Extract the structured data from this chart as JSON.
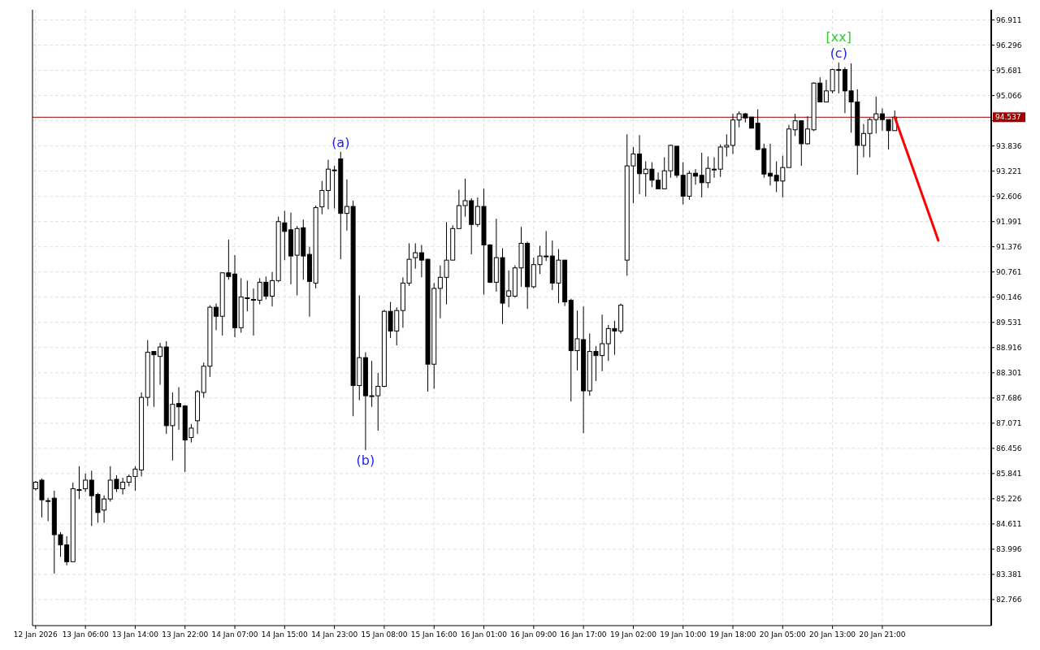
{
  "chart_data": {
    "type": "candlestick",
    "categories": [
      "12 Jan 2026",
      null,
      null,
      null,
      null,
      null,
      null,
      null,
      "13 Jan 06:00",
      null,
      null,
      null,
      null,
      null,
      null,
      null,
      "13 Jan 14:00",
      null,
      null,
      null,
      null,
      null,
      null,
      null,
      "13 Jan 22:00",
      null,
      null,
      null,
      null,
      null,
      null,
      null,
      "14 Jan 07:00",
      null,
      null,
      null,
      null,
      null,
      null,
      null,
      "14 Jan 15:00",
      null,
      null,
      null,
      null,
      null,
      null,
      null,
      "14 Jan 23:00",
      null,
      null,
      null,
      null,
      null,
      null,
      null,
      "15 Jan 08:00",
      null,
      null,
      null,
      null,
      null,
      null,
      null,
      "15 Jan 16:00",
      null,
      null,
      null,
      null,
      null,
      null,
      null,
      "16 Jan 01:00",
      null,
      null,
      null,
      null,
      null,
      null,
      null,
      "16 Jan 09:00",
      null,
      null,
      null,
      null,
      null,
      null,
      null,
      "16 Jan 17:00",
      null,
      null,
      null,
      null,
      null,
      null,
      null,
      "19 Jan 02:00",
      null,
      null,
      null,
      null,
      null,
      null,
      null,
      "19 Jan 10:00",
      null,
      null,
      null,
      null,
      null,
      null,
      null,
      "19 Jan 18:00",
      null,
      null,
      null,
      null,
      null,
      null,
      null,
      "20 Jan 05:00",
      null,
      null,
      null,
      null,
      null,
      null,
      null,
      "20 Jan 13:00",
      null,
      null,
      null,
      null,
      null,
      null,
      null,
      "20 Jan 21:00",
      null,
      null,
      null,
      null,
      null,
      null,
      null,
      null,
      null,
      null,
      null,
      null,
      null,
      null,
      null,
      null,
      null
    ],
    "ohlc": [
      [
        85.47,
        85.66,
        85.43,
        85.63
      ],
      [
        85.68,
        85.72,
        84.77,
        85.2
      ],
      [
        85.18,
        85.25,
        84.68,
        85.18
      ],
      [
        85.24,
        85.42,
        83.4,
        84.35
      ],
      [
        84.35,
        84.41,
        83.81,
        84.1
      ],
      [
        84.1,
        84.31,
        83.6,
        83.69
      ],
      [
        83.69,
        85.62,
        83.69,
        85.47
      ],
      [
        85.45,
        86.02,
        85.22,
        85.45
      ],
      [
        85.47,
        85.84,
        85.39,
        85.68
      ],
      [
        85.68,
        85.91,
        84.56,
        85.3
      ],
      [
        85.33,
        85.37,
        84.64,
        84.89
      ],
      [
        84.95,
        85.31,
        84.64,
        85.22
      ],
      [
        85.22,
        86.02,
        85.16,
        85.68
      ],
      [
        85.7,
        85.8,
        85.39,
        85.47
      ],
      [
        85.47,
        85.74,
        85.33,
        85.63
      ],
      [
        85.63,
        85.82,
        85.53,
        85.77
      ],
      [
        85.77,
        86.02,
        85.42,
        85.95
      ],
      [
        85.93,
        87.82,
        85.77,
        87.7
      ],
      [
        87.7,
        89.1,
        87.49,
        88.8
      ],
      [
        88.82,
        88.82,
        87.47,
        88.74
      ],
      [
        88.7,
        89.03,
        88.01,
        88.93
      ],
      [
        88.93,
        89.07,
        86.81,
        87.01
      ],
      [
        87.01,
        87.82,
        86.16,
        87.53
      ],
      [
        87.55,
        87.95,
        86.91,
        87.47
      ],
      [
        87.49,
        87.51,
        85.88,
        86.66
      ],
      [
        86.72,
        87.05,
        86.6,
        86.95
      ],
      [
        87.13,
        87.88,
        86.81,
        87.84
      ],
      [
        87.82,
        88.55,
        87.69,
        88.46
      ],
      [
        88.46,
        89.95,
        88.2,
        89.9
      ],
      [
        89.9,
        89.99,
        89.34,
        89.68
      ],
      [
        89.68,
        90.74,
        89.21,
        90.74
      ],
      [
        90.74,
        91.55,
        90.57,
        90.65
      ],
      [
        90.71,
        91.17,
        89.17,
        89.4
      ],
      [
        89.4,
        90.61,
        89.28,
        90.15
      ],
      [
        90.13,
        90.55,
        89.8,
        90.13
      ],
      [
        90.09,
        90.36,
        89.21,
        90.09
      ],
      [
        90.07,
        90.61,
        89.97,
        90.51
      ],
      [
        90.51,
        90.65,
        90.09,
        90.17
      ],
      [
        90.17,
        90.76,
        89.92,
        90.55
      ],
      [
        90.55,
        92.11,
        90.51,
        91.99
      ],
      [
        91.96,
        92.25,
        91.05,
        91.75
      ],
      [
        91.79,
        92.21,
        90.46,
        91.15
      ],
      [
        91.17,
        91.88,
        90.19,
        91.82
      ],
      [
        91.84,
        92.04,
        90.57,
        91.15
      ],
      [
        91.19,
        91.38,
        89.67,
        90.53
      ],
      [
        90.49,
        92.38,
        90.36,
        92.33
      ],
      [
        92.35,
        92.98,
        92.17,
        92.75
      ],
      [
        92.75,
        93.5,
        92.29,
        93.27
      ],
      [
        93.25,
        93.35,
        92.31,
        93.25
      ],
      [
        93.52,
        93.69,
        91.07,
        92.19
      ],
      [
        92.19,
        93.02,
        91.77,
        92.36
      ],
      [
        92.36,
        92.5,
        87.24,
        87.99
      ],
      [
        87.99,
        90.19,
        87.63,
        88.67
      ],
      [
        88.67,
        88.8,
        86.41,
        87.74
      ],
      [
        87.74,
        88.59,
        87.47,
        87.74
      ],
      [
        87.74,
        88.3,
        86.89,
        87.97
      ],
      [
        87.97,
        89.84,
        87.95,
        89.8
      ],
      [
        89.8,
        90.03,
        89.15,
        89.32
      ],
      [
        89.32,
        89.9,
        88.97,
        89.82
      ],
      [
        89.82,
        90.63,
        89.4,
        90.49
      ],
      [
        90.49,
        91.46,
        90.42,
        91.07
      ],
      [
        91.11,
        91.46,
        90.84,
        91.23
      ],
      [
        91.23,
        91.42,
        90.63,
        91.05
      ],
      [
        91.07,
        91.09,
        87.84,
        88.51
      ],
      [
        88.51,
        90.49,
        87.91,
        90.36
      ],
      [
        90.36,
        90.92,
        89.63,
        90.63
      ],
      [
        90.63,
        91.98,
        89.97,
        91.05
      ],
      [
        91.05,
        91.9,
        91.05,
        91.82
      ],
      [
        91.82,
        92.77,
        91.82,
        92.38
      ],
      [
        92.38,
        93.04,
        92.11,
        92.5
      ],
      [
        92.5,
        92.56,
        91.19,
        91.92
      ],
      [
        91.92,
        92.58,
        91.86,
        92.36
      ],
      [
        92.36,
        92.79,
        90.21,
        91.42
      ],
      [
        91.42,
        91.44,
        90.49,
        90.51
      ],
      [
        90.51,
        92.06,
        90.28,
        91.11
      ],
      [
        91.11,
        91.34,
        89.49,
        90.0
      ],
      [
        90.17,
        90.8,
        89.9,
        90.3
      ],
      [
        90.17,
        90.92,
        90.13,
        90.86
      ],
      [
        90.86,
        91.86,
        90.4,
        91.46
      ],
      [
        91.46,
        91.5,
        89.86,
        90.4
      ],
      [
        90.4,
        91.11,
        90.36,
        90.94
      ],
      [
        90.94,
        91.4,
        90.71,
        91.15
      ],
      [
        91.15,
        91.76,
        91.03,
        91.15
      ],
      [
        91.15,
        91.53,
        90.32,
        90.49
      ],
      [
        90.49,
        91.32,
        90.0,
        91.05
      ],
      [
        91.05,
        91.05,
        89.93,
        90.03
      ],
      [
        90.07,
        90.11,
        87.6,
        88.84
      ],
      [
        88.84,
        89.82,
        88.36,
        89.13
      ],
      [
        89.11,
        89.92,
        86.83,
        87.86
      ],
      [
        87.86,
        89.26,
        87.74,
        88.82
      ],
      [
        88.82,
        88.95,
        88.1,
        88.72
      ],
      [
        88.72,
        89.72,
        88.34,
        89.01
      ],
      [
        89.01,
        89.47,
        88.59,
        89.38
      ],
      [
        89.38,
        89.57,
        88.74,
        89.32
      ],
      [
        89.32,
        89.99,
        89.26,
        89.95
      ],
      [
        91.05,
        94.12,
        90.67,
        93.35
      ],
      [
        93.35,
        93.81,
        92.44,
        93.64
      ],
      [
        93.64,
        94.1,
        92.66,
        93.16
      ],
      [
        93.16,
        93.46,
        92.6,
        93.27
      ],
      [
        93.27,
        93.44,
        92.83,
        93.0
      ],
      [
        93.0,
        93.19,
        92.79,
        92.79
      ],
      [
        92.79,
        93.56,
        92.79,
        93.23
      ],
      [
        93.23,
        93.87,
        93.06,
        93.85
      ],
      [
        93.83,
        93.83,
        93.06,
        93.12
      ],
      [
        93.12,
        93.44,
        92.41,
        92.61
      ],
      [
        92.61,
        93.23,
        92.52,
        93.17
      ],
      [
        93.17,
        93.27,
        92.89,
        93.1
      ],
      [
        93.12,
        93.67,
        92.58,
        92.94
      ],
      [
        92.94,
        93.58,
        92.81,
        93.29
      ],
      [
        93.27,
        93.56,
        93.06,
        93.27
      ],
      [
        93.27,
        93.87,
        93.08,
        93.81
      ],
      [
        93.81,
        94.12,
        93.58,
        93.85
      ],
      [
        93.85,
        94.62,
        93.64,
        94.47
      ],
      [
        94.47,
        94.68,
        94.29,
        94.62
      ],
      [
        94.62,
        94.64,
        94.41,
        94.52
      ],
      [
        94.54,
        94.54,
        94.27,
        94.27
      ],
      [
        94.39,
        94.73,
        93.73,
        93.75
      ],
      [
        93.77,
        93.89,
        93.06,
        93.15
      ],
      [
        93.17,
        93.89,
        92.87,
        93.1
      ],
      [
        93.12,
        93.46,
        92.71,
        92.98
      ],
      [
        92.98,
        93.6,
        92.58,
        93.31
      ],
      [
        93.31,
        94.35,
        93.31,
        94.25
      ],
      [
        94.23,
        94.62,
        94.08,
        94.45
      ],
      [
        94.45,
        94.45,
        93.35,
        93.89
      ],
      [
        93.89,
        94.56,
        93.87,
        94.25
      ],
      [
        94.23,
        95.39,
        94.2,
        95.37
      ],
      [
        95.37,
        95.51,
        94.91,
        94.91
      ],
      [
        94.91,
        95.45,
        94.91,
        95.18
      ],
      [
        95.18,
        95.72,
        95.12,
        95.7
      ],
      [
        95.7,
        95.87,
        95.12,
        95.7
      ],
      [
        95.7,
        95.76,
        94.64,
        95.18
      ],
      [
        95.18,
        95.85,
        94.16,
        94.91
      ],
      [
        94.91,
        95.22,
        93.13,
        93.85
      ],
      [
        93.85,
        94.37,
        93.56,
        94.14
      ],
      [
        94.14,
        94.52,
        93.56,
        94.48
      ],
      [
        94.48,
        95.04,
        94.14,
        94.62
      ],
      [
        94.62,
        94.75,
        94.21,
        94.48
      ],
      [
        94.48,
        94.48,
        93.75,
        94.21
      ],
      [
        94.21,
        94.7,
        94.21,
        94.537
      ],
      null,
      null,
      null,
      null,
      null,
      null,
      null,
      null,
      null,
      null,
      null,
      null,
      null,
      null,
      null
    ],
    "series": [
      {
        "type": "line",
        "color": "#ff0000",
        "values": [
          null,
          null,
          null,
          null,
          null,
          null,
          null,
          null,
          null,
          null,
          null,
          null,
          null,
          null,
          null,
          null,
          null,
          null,
          null,
          null,
          null,
          null,
          null,
          null,
          null,
          null,
          null,
          null,
          null,
          null,
          null,
          null,
          null,
          null,
          null,
          null,
          null,
          null,
          null,
          null,
          null,
          null,
          null,
          null,
          null,
          null,
          null,
          null,
          null,
          null,
          null,
          null,
          null,
          null,
          null,
          null,
          null,
          null,
          null,
          null,
          null,
          null,
          null,
          null,
          null,
          null,
          null,
          null,
          null,
          null,
          null,
          null,
          null,
          null,
          null,
          null,
          null,
          null,
          null,
          null,
          null,
          null,
          null,
          null,
          null,
          null,
          null,
          null,
          null,
          null,
          null,
          null,
          null,
          null,
          null,
          null,
          null,
          null,
          null,
          null,
          null,
          null,
          null,
          null,
          null,
          null,
          null,
          null,
          null,
          null,
          null,
          null,
          null,
          null,
          null,
          null,
          null,
          null,
          null,
          null,
          null,
          null,
          null,
          null,
          null,
          null,
          null,
          null,
          null,
          null,
          null,
          null,
          null,
          null,
          null,
          null,
          null,
          null,
          94.54,
          null,
          null,
          null,
          null,
          null,
          null,
          91.53,
          null,
          null,
          null,
          null,
          null,
          null,
          null,
          null
        ]
      }
    ],
    "ylim": [
      82.13,
      97.16
    ],
    "yticks": [
      82.766,
      83.381,
      83.996,
      84.611,
      85.226,
      85.841,
      86.456,
      87.071,
      87.686,
      88.301,
      88.916,
      89.531,
      90.146,
      90.761,
      91.376,
      91.991,
      92.606,
      93.221,
      93.836,
      {
        "value": 94.451,
        "label": null
      },
      95.066,
      95.681,
      96.296,
      96.911
    ],
    "ref_lines": [
      {
        "axis": "y",
        "value": 94.537,
        "label": "94.537",
        "color": "#a00000"
      }
    ],
    "annotations": [
      {
        "text": "(a)",
        "y": 93.69
      },
      {
        "text": "(b)",
        "y": 86.41
      },
      {
        "text": "(c)",
        "y": 95.87
      },
      "[xx]"
    ],
    "grid": true
  }
}
